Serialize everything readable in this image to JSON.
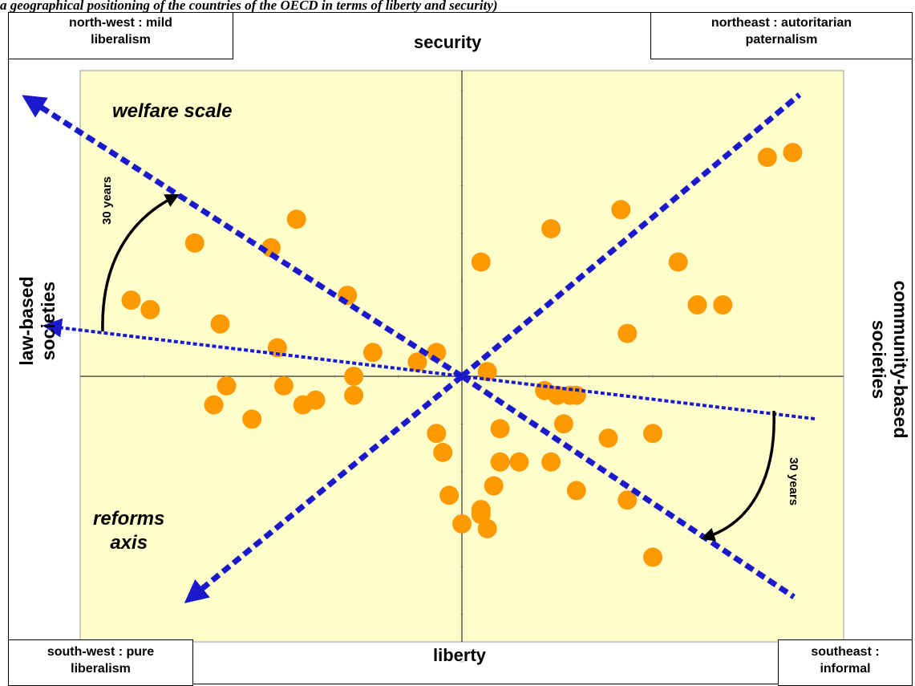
{
  "caption": "a geographical positioning of the countries of the OECD in terms of liberty and security)",
  "corners": {
    "north_west": [
      "north-west : mild",
      "liberalism"
    ],
    "north_east": [
      "northeast : autoritarian",
      "paternalism"
    ],
    "south_west": [
      "south-west : pure",
      "liberalism"
    ],
    "south_east": [
      "southeast :",
      "informal"
    ]
  },
  "axes": {
    "top": "security",
    "bottom": "liberty",
    "left": [
      "law-based",
      "societies"
    ],
    "right": [
      "community-based",
      "societies"
    ]
  },
  "annotations": {
    "welfare": "welfare scale",
    "reforms": [
      "reforms",
      "axis"
    ],
    "years_left": "30 years",
    "years_right": "30 years"
  },
  "colors": {
    "panel": "#ffffcc",
    "point": "#ff9900",
    "dashed_line": "#1a1acc",
    "arrow": "#000000"
  },
  "chart_data": {
    "type": "scatter",
    "xlim": [
      -6,
      6
    ],
    "ylim": [
      -6,
      6
    ],
    "points": [
      [
        -5.2,
        1.6
      ],
      [
        -4.9,
        1.4
      ],
      [
        -4.2,
        2.8
      ],
      [
        -3.8,
        1.1
      ],
      [
        -3.7,
        -0.2
      ],
      [
        -3.9,
        -0.6
      ],
      [
        -3.3,
        -0.9
      ],
      [
        -3.0,
        2.7
      ],
      [
        -2.9,
        0.6
      ],
      [
        -2.8,
        -0.2
      ],
      [
        -2.6,
        3.3
      ],
      [
        -2.5,
        -0.6
      ],
      [
        -2.3,
        -0.5
      ],
      [
        -1.8,
        1.7
      ],
      [
        -1.7,
        -0.4
      ],
      [
        -1.7,
        0.0
      ],
      [
        -1.4,
        0.5
      ],
      [
        -0.7,
        0.3
      ],
      [
        -0.4,
        0.5
      ],
      [
        -0.4,
        -1.2
      ],
      [
        -0.3,
        -1.6
      ],
      [
        -0.2,
        -2.5
      ],
      [
        0.0,
        -3.1
      ],
      [
        0.3,
        -2.8
      ],
      [
        0.3,
        -2.9
      ],
      [
        0.4,
        -3.2
      ],
      [
        0.3,
        2.4
      ],
      [
        0.4,
        0.1
      ],
      [
        0.5,
        -2.3
      ],
      [
        0.6,
        -1.1
      ],
      [
        0.6,
        -1.8
      ],
      [
        0.9,
        -1.8
      ],
      [
        1.4,
        -1.8
      ],
      [
        1.4,
        3.1
      ],
      [
        1.3,
        -0.3
      ],
      [
        1.5,
        -0.4
      ],
      [
        1.7,
        -0.4
      ],
      [
        1.8,
        -0.4
      ],
      [
        1.6,
        -1.0
      ],
      [
        1.8,
        -2.4
      ],
      [
        2.3,
        -1.3
      ],
      [
        2.6,
        -2.6
      ],
      [
        2.5,
        3.5
      ],
      [
        2.6,
        0.9
      ],
      [
        3.0,
        -1.2
      ],
      [
        3.0,
        -3.8
      ],
      [
        3.4,
        2.4
      ],
      [
        3.7,
        1.5
      ],
      [
        4.1,
        1.5
      ],
      [
        4.8,
        4.6
      ],
      [
        5.2,
        4.7
      ]
    ]
  }
}
